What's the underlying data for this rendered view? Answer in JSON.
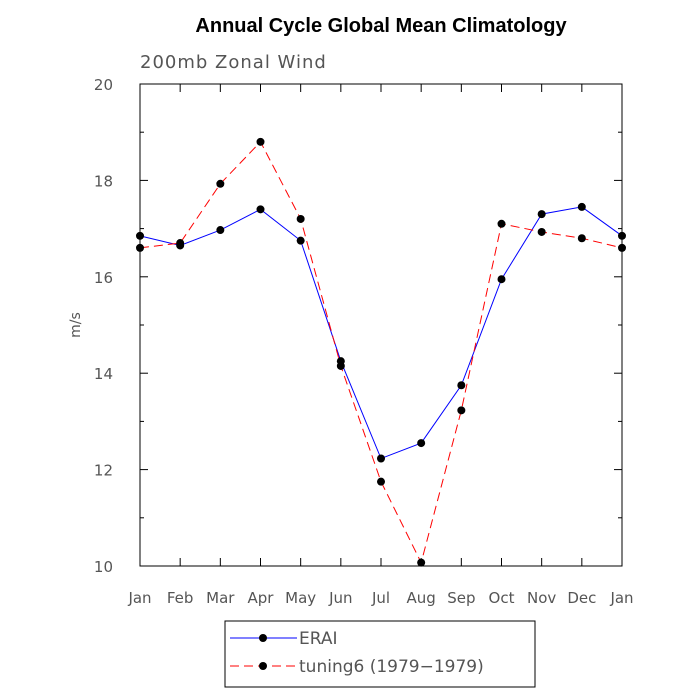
{
  "chart_data": {
    "type": "line",
    "title": "Annual Cycle Global Mean Climatology",
    "subtitle": "200mb Zonal Wind",
    "xlabel": "",
    "ylabel": "m/s",
    "categories": [
      "Jan",
      "Feb",
      "Mar",
      "Apr",
      "May",
      "Jun",
      "Jul",
      "Aug",
      "Sep",
      "Oct",
      "Nov",
      "Dec",
      "Jan"
    ],
    "ylim": [
      10,
      20
    ],
    "yticks": [
      "10",
      "12",
      "14",
      "16",
      "18",
      "20"
    ],
    "legend_position": "bottom",
    "grid": false,
    "series": [
      {
        "name": "ERAI",
        "color": "#0000ff",
        "dash": "solid",
        "values": [
          16.85,
          16.65,
          16.97,
          17.4,
          16.75,
          14.25,
          12.23,
          12.55,
          13.75,
          15.95,
          17.3,
          17.45,
          16.85
        ]
      },
      {
        "name": "tuning6 (1979−1979)",
        "color": "#ff0000",
        "dash": "dashed",
        "values": [
          16.6,
          16.7,
          17.93,
          18.8,
          17.2,
          14.15,
          11.75,
          10.07,
          13.23,
          17.1,
          16.93,
          16.8,
          16.6
        ]
      }
    ]
  }
}
